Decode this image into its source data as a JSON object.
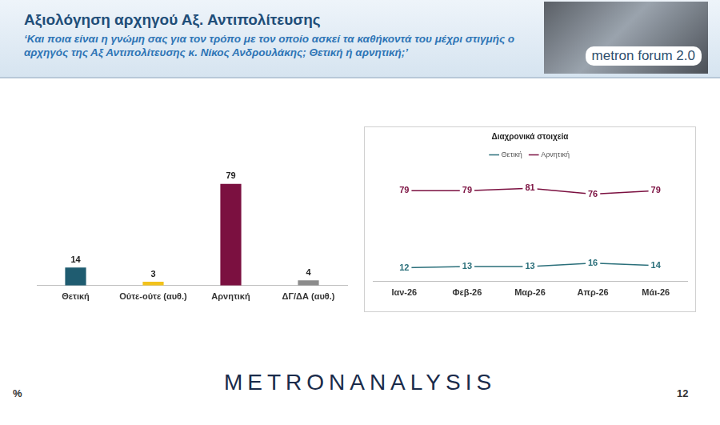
{
  "header": {
    "title": "Αξιολόγηση αρχηγού Αξ. Αντιπολίτευσης",
    "subtitle": "‘Και ποια είναι η γνώμη σας για τον τρόπο με τον οποίο ασκεί τα καθήκοντά του μέχρι στιγμής ο αρχηγός της Αξ Αντιπολίτευσης κ. Νίκος Ανδρουλάκης; Θετική ή αρνητική;’"
  },
  "logo": "metron forum 2.0",
  "chart_data": [
    {
      "type": "bar",
      "categories": [
        "Θετική",
        "Ούτε-ούτε (αυθ.)",
        "Αρνητική",
        "ΔΓ/ΔΑ (αυθ.)"
      ],
      "values": [
        14,
        3,
        79,
        4
      ],
      "colors": [
        "#1f5c70",
        "#f2c21b",
        "#7b1040",
        "#8c8c8c"
      ],
      "ylim": [
        0,
        90
      ],
      "grid": false,
      "data_labels": true,
      "tick_labels": "x"
    },
    {
      "type": "line",
      "title": "Διαχρονικά στοιχεία",
      "categories": [
        "Ιαν-26",
        "Φεβ-26",
        "Μαρ-26",
        "Απρ-26",
        "Μάι-26"
      ],
      "series": [
        {
          "name": "Θετική",
          "color": "#2a6f7a",
          "values": [
            12,
            13,
            13,
            16,
            14
          ],
          "marker": "none",
          "line_style": "solid"
        },
        {
          "name": "Αρνητική",
          "color": "#7b1040",
          "values": [
            79,
            79,
            81,
            76,
            79
          ],
          "marker": "none",
          "line_style": "solid"
        }
      ],
      "ylim": [
        0,
        100
      ],
      "grid": false,
      "legend": "top",
      "data_labels": true,
      "tick_labels": "x"
    }
  ],
  "footer": {
    "brand": "METRONANALYSIS",
    "unit": "%",
    "page": 12
  }
}
